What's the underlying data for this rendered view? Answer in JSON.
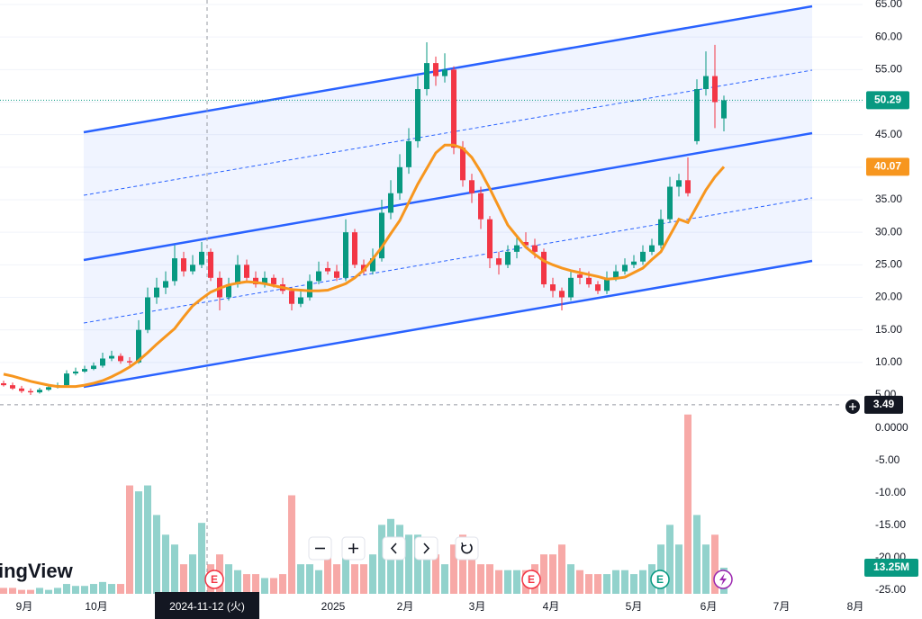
{
  "chart_data": {
    "type": "candlestick",
    "logo": "ingView",
    "xlim": [
      -0.4,
      95.4
    ],
    "xticks": [
      {
        "value": 2.3,
        "label": "9月"
      },
      {
        "value": 10.3,
        "label": "10月"
      },
      {
        "value": 36.6,
        "label": "2025"
      },
      {
        "value": 44.6,
        "label": "2月"
      },
      {
        "value": 52.6,
        "label": "3月"
      },
      {
        "value": 60.8,
        "label": "4月"
      },
      {
        "value": 70,
        "label": "5月"
      },
      {
        "value": 78.3,
        "label": "6月"
      },
      {
        "value": 86.4,
        "label": "7月"
      },
      {
        "value": 94.6,
        "label": "8月"
      }
    ],
    "ylim": [
      5,
      65
    ],
    "yticks": [
      {
        "value": 5,
        "label": "5.00"
      },
      {
        "value": 10,
        "label": "10.00"
      },
      {
        "value": 15,
        "label": "15.00"
      },
      {
        "value": 20,
        "label": "20.00"
      },
      {
        "value": 25,
        "label": "25.00"
      },
      {
        "value": 30,
        "label": "30.00"
      },
      {
        "value": 35,
        "label": "35.00"
      },
      {
        "value": 40,
        "label": "40.00"
      },
      {
        "value": 45,
        "label": "45.00"
      },
      {
        "value": 50,
        "label": "50.00"
      },
      {
        "value": 55,
        "label": "55.00"
      },
      {
        "value": 60,
        "label": "60.00"
      },
      {
        "value": 65,
        "label": "65.00"
      }
    ],
    "grid": true,
    "up_color": "#089981",
    "down_color": "#f23645",
    "open": [
      6.8,
      6.5,
      6.0,
      5.6,
      5.4,
      5.8,
      6.2,
      6.5,
      8.3,
      8.6,
      9.0,
      9.5,
      10.6,
      11.0,
      10.2,
      10.0,
      15.0,
      20.0,
      21.5,
      22.5,
      26.0,
      24.0,
      25.0,
      27.0,
      23.0,
      20.0,
      22.0,
      25.0,
      23.0,
      22.0,
      23.0,
      22.0,
      21.0,
      19.0,
      20.0,
      22.5,
      24.5,
      24.0,
      23.0,
      30.0,
      25.0,
      24.0,
      26.0,
      33.0,
      36.0,
      40.0,
      44.0,
      52.0,
      56.0,
      54.0,
      55.0,
      43.0,
      38.0,
      36.0,
      32.0,
      26.0,
      25.0,
      27.0,
      28.5,
      28.0,
      27.0,
      22.0,
      21.0,
      20.0,
      23.5,
      23.0,
      22.0,
      21.0,
      23.0,
      24.0,
      25.0,
      25.5,
      27.0,
      28.0,
      32.0,
      37.0,
      38.0,
      44.0,
      52.0,
      54.0,
      47.5
    ],
    "high": [
      7.2,
      6.9,
      6.4,
      6.0,
      6.1,
      6.5,
      6.9,
      8.8,
      9.2,
      9.5,
      10.0,
      11.5,
      11.8,
      11.4,
      10.8,
      16.5,
      21.5,
      23.0,
      24.0,
      28.0,
      27.0,
      26.5,
      28.5,
      27.5,
      24.0,
      23.0,
      26.5,
      25.8,
      24.0,
      24.0,
      23.5,
      23.0,
      21.5,
      21.0,
      23.5,
      25.5,
      25.5,
      25.0,
      32.0,
      30.5,
      25.8,
      27.5,
      35.0,
      38.0,
      42.0,
      46.0,
      54.0,
      59.2,
      57.0,
      57.5,
      55.5,
      44.0,
      39.0,
      37.0,
      32.5,
      27.0,
      28.0,
      29.5,
      30.0,
      29.0,
      27.5,
      23.0,
      21.5,
      24.0,
      24.5,
      24.0,
      22.5,
      24.0,
      25.0,
      26.0,
      26.5,
      28.0,
      29.0,
      33.5,
      38.5,
      39.0,
      41.5,
      53.5,
      57.8,
      58.8,
      51.0
    ],
    "low": [
      6.3,
      5.8,
      5.3,
      5.0,
      5.2,
      5.6,
      6.0,
      6.3,
      8.0,
      8.4,
      8.8,
      9.2,
      10.2,
      9.8,
      9.6,
      9.8,
      14.5,
      19.0,
      20.5,
      21.8,
      23.2,
      23.5,
      24.5,
      22.5,
      18.0,
      19.5,
      21.5,
      22.5,
      21.5,
      21.5,
      21.5,
      20.5,
      18.0,
      18.5,
      19.5,
      22.0,
      23.5,
      22.5,
      22.5,
      24.5,
      23.5,
      23.5,
      25.5,
      32.0,
      35.0,
      39.0,
      43.0,
      51.0,
      52.5,
      53.0,
      42.0,
      37.0,
      34.5,
      30.5,
      24.5,
      23.5,
      24.5,
      26.0,
      27.5,
      26.0,
      21.5,
      20.0,
      18.0,
      19.5,
      22.0,
      21.5,
      20.5,
      20.5,
      22.5,
      23.5,
      24.5,
      25.0,
      26.5,
      27.5,
      31.5,
      35.5,
      35.5,
      43.5,
      51.0,
      46.0,
      45.5
    ],
    "close": [
      6.5,
      6.0,
      5.6,
      5.4,
      5.8,
      6.2,
      6.5,
      8.3,
      8.6,
      9.0,
      9.5,
      10.6,
      11.0,
      10.2,
      10.0,
      15.0,
      20.0,
      21.5,
      22.5,
      26.0,
      24.0,
      25.0,
      27.0,
      23.0,
      20.0,
      22.0,
      25.0,
      23.0,
      22.0,
      23.0,
      22.0,
      21.0,
      19.0,
      20.0,
      22.5,
      24.0,
      24.0,
      23.0,
      30.0,
      25.0,
      24.0,
      26.0,
      33.0,
      36.0,
      40.0,
      44.0,
      52.0,
      56.0,
      54.0,
      55.0,
      43.0,
      38.0,
      36.0,
      32.0,
      26.0,
      25.0,
      27.0,
      28.0,
      28.0,
      27.0,
      22.0,
      21.0,
      20.0,
      23.0,
      23.0,
      22.0,
      21.0,
      23.0,
      24.0,
      25.0,
      25.5,
      27.0,
      28.0,
      32.0,
      37.0,
      38.0,
      36.0,
      52.0,
      54.0,
      50.0,
      50.29
    ],
    "ma": {
      "color": "#f7961e",
      "values": [
        8.2,
        7.9,
        7.5,
        7.1,
        6.8,
        6.5,
        6.3,
        6.3,
        6.3,
        6.5,
        6.8,
        7.2,
        7.8,
        8.5,
        9.3,
        10.3,
        11.5,
        12.8,
        14.0,
        15.2,
        17.0,
        18.7,
        19.8,
        20.8,
        21.4,
        21.9,
        22.2,
        22.4,
        22.3,
        22.1,
        21.8,
        21.5,
        21.2,
        21.1,
        21.0,
        21.0,
        21.1,
        21.6,
        22.1,
        23.0,
        24.2,
        25.9,
        27.7,
        29.8,
        31.8,
        34.6,
        37.4,
        39.8,
        42.2,
        43.4,
        43.4,
        42.9,
        41.5,
        39.3,
        36.7,
        33.9,
        31.1,
        29.4,
        27.7,
        26.6,
        25.6,
        25.0,
        24.5,
        24.1,
        23.8,
        23.5,
        23.2,
        22.8,
        22.9,
        23.1,
        23.8,
        24.5,
        25.8,
        27.0,
        29.5,
        32.0,
        31.5,
        34.0,
        36.5,
        38.5,
        40.07
      ]
    },
    "channel": {
      "color": "#2962ff",
      "x": [
        8.9,
        89.8
      ],
      "upper": [
        45.37,
        64.72
      ],
      "upper_mid": [
        35.69,
        54.91
      ],
      "middle": [
        25.74,
        45.23
      ],
      "lower_mid": [
        16.06,
        35.28
      ],
      "lower": [
        6.24,
        25.6
      ]
    },
    "volume": {
      "ylim": [
        0,
        100
      ],
      "values": [
        3,
        3,
        2,
        2,
        3,
        2,
        3,
        5,
        4,
        4,
        5,
        6,
        5,
        5,
        55,
        52,
        55,
        40,
        30,
        25,
        15,
        20,
        36,
        15,
        20,
        15,
        12,
        10,
        10,
        8,
        8,
        10,
        50,
        15,
        15,
        12,
        20,
        15,
        25,
        15,
        15,
        20,
        35,
        38,
        35,
        30,
        30,
        25,
        20,
        15,
        25,
        30,
        20,
        15,
        15,
        12,
        12,
        12,
        12,
        15,
        20,
        20,
        25,
        15,
        12,
        10,
        10,
        10,
        12,
        12,
        10,
        12,
        15,
        25,
        35,
        25,
        91,
        40,
        25,
        30,
        13.25
      ]
    },
    "volume_last": {
      "value": 13.25,
      "label": "13.25M"
    },
    "y2lim": [
      -25,
      0
    ],
    "y2ticks": [
      {
        "value": 0,
        "label": "0.0000"
      },
      {
        "value": -5,
        "label": "-5.00"
      },
      {
        "value": -10,
        "label": "-10.00"
      },
      {
        "value": -15,
        "label": "-15.00"
      },
      {
        "value": -20,
        "label": "-20.00"
      },
      {
        "value": -25,
        "label": "-25.00"
      }
    ],
    "last_price": 50.29,
    "crosshair": {
      "x": 22.6,
      "date": "2024-11-12 (火)",
      "price": 3.49
    },
    "events": [
      {
        "x": 23.4,
        "label": "E",
        "color": "#f23645"
      },
      {
        "x": 58.6,
        "label": "E",
        "color": "#f23645"
      },
      {
        "x": 72.9,
        "label": "E",
        "color": "#089981"
      }
    ]
  }
}
